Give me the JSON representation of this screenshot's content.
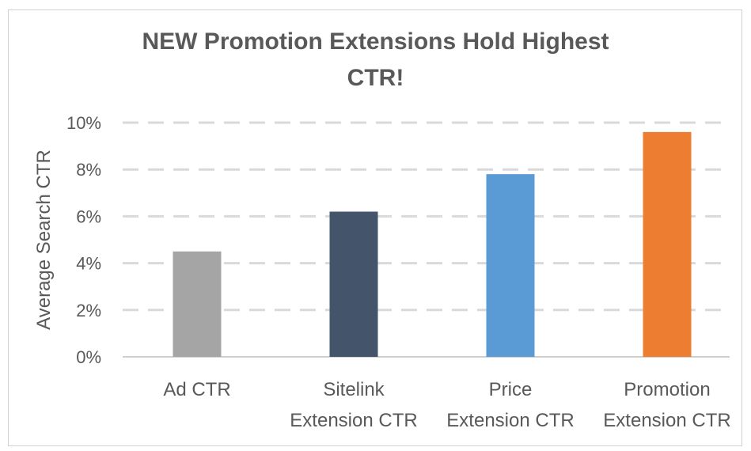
{
  "chart_data": {
    "type": "bar",
    "title_lines": [
      "NEW Promotion Extensions Hold Highest",
      "CTR!"
    ],
    "ylabel": "Average Search CTR",
    "xlabel": "",
    "categories": [
      [
        "Ad CTR"
      ],
      [
        "Sitelink",
        "Extension CTR"
      ],
      [
        "Price",
        "Extension CTR"
      ],
      [
        "Promotion",
        "Extension CTR"
      ]
    ],
    "values": [
      4.5,
      6.2,
      7.8,
      9.6
    ],
    "colors": [
      "#a5a5a5",
      "#44546a",
      "#5b9bd5",
      "#ed7d31"
    ],
    "ylim": [
      0,
      10
    ],
    "yticks": [
      {
        "value": 0,
        "label": "0%"
      },
      {
        "value": 2,
        "label": "2%"
      },
      {
        "value": 4,
        "label": "4%"
      },
      {
        "value": 6,
        "label": "6%"
      },
      {
        "value": 8,
        "label": "8%"
      },
      {
        "value": 10,
        "label": "10%"
      }
    ],
    "grid": true,
    "gridline_color": "#d9d9d9",
    "axis_color": "#bfbfbf"
  }
}
